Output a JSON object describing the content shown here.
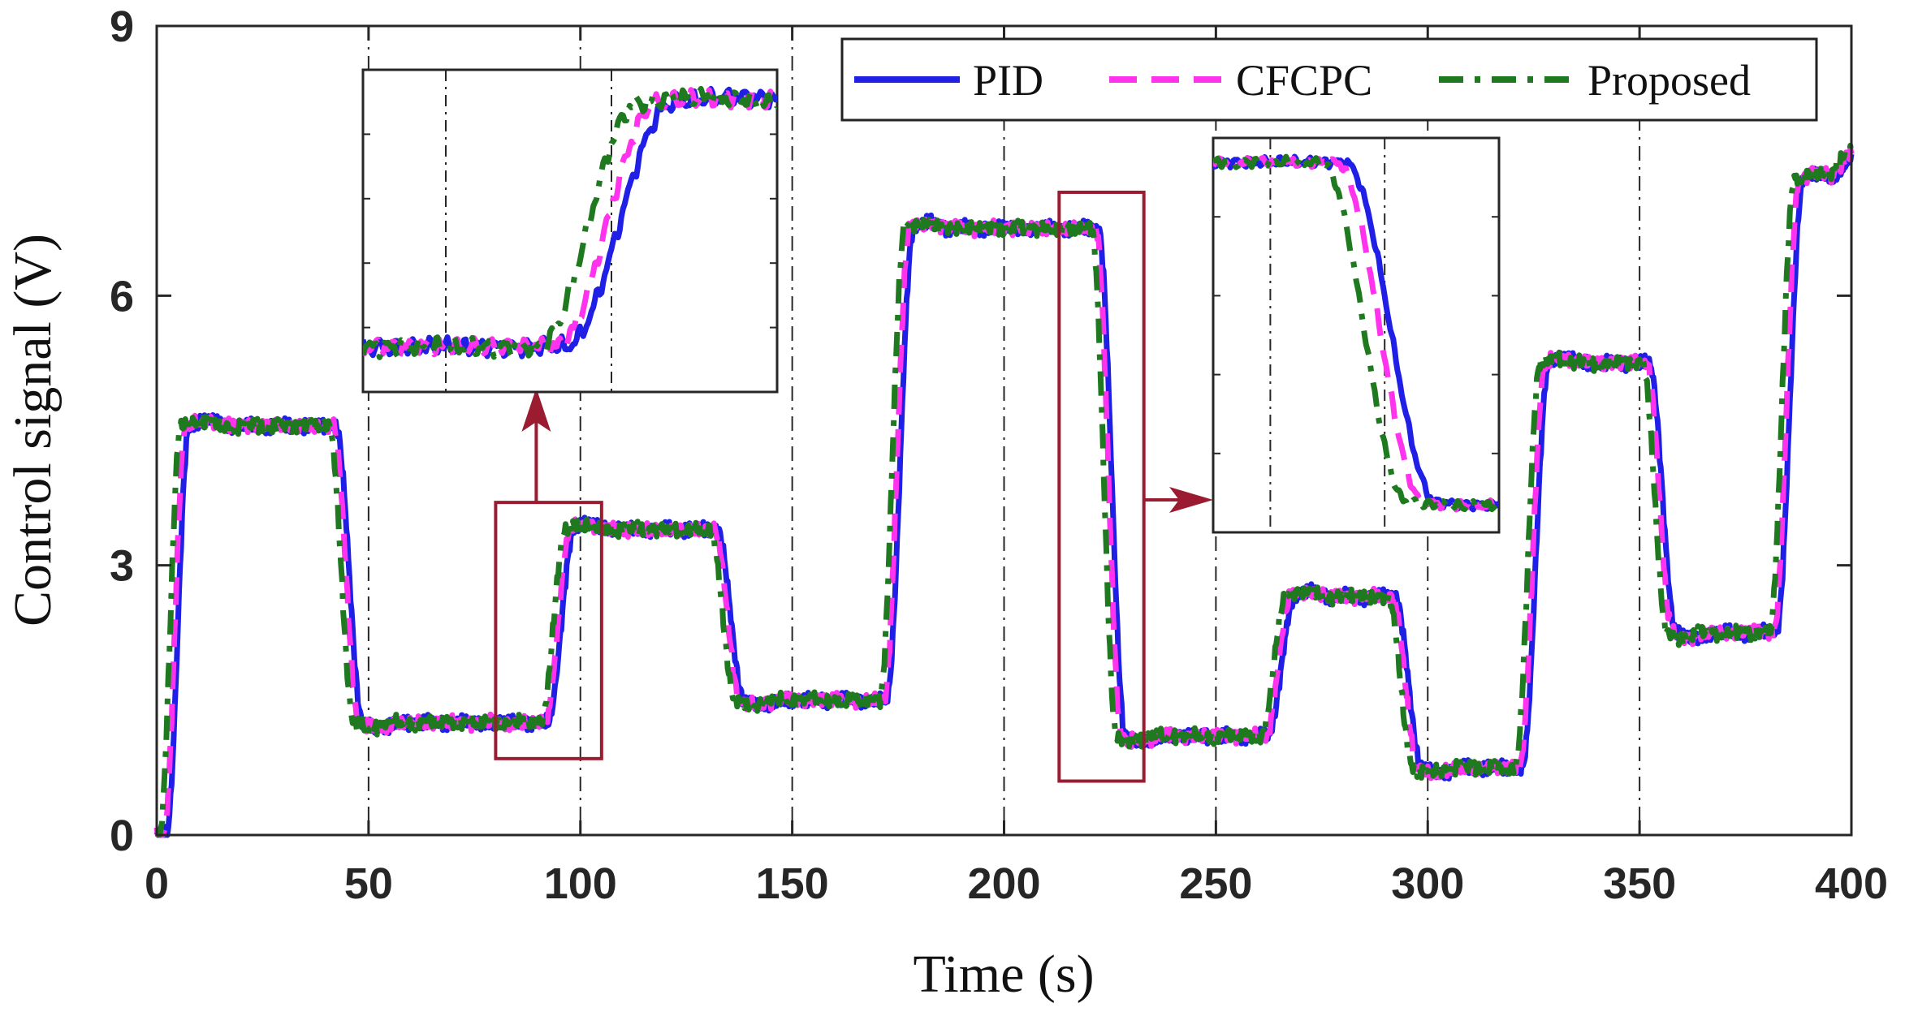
{
  "chart_data": {
    "type": "line",
    "xlabel": "Time (s)",
    "ylabel": "Control signal (V)",
    "xlim": [
      0,
      400
    ],
    "ylim": [
      0,
      9
    ],
    "xticks": [
      0,
      50,
      100,
      150,
      200,
      250,
      300,
      350,
      400
    ],
    "yticks": [
      0,
      3,
      6,
      9
    ],
    "grid": "vertical dash-dot lines at x ticks",
    "legend": {
      "placement": "top-right",
      "entries": [
        "PID",
        "CFCPC",
        "Proposed"
      ]
    },
    "reference_steps": [
      {
        "t": 0,
        "u": 4.55
      },
      {
        "t": 40,
        "u": 1.25
      },
      {
        "t": 90,
        "u": 3.4
      },
      {
        "t": 130,
        "u": 1.5
      },
      {
        "t": 170,
        "u": 6.75
      },
      {
        "t": 220,
        "u": 1.1
      },
      {
        "t": 260,
        "u": 2.65
      },
      {
        "t": 290,
        "u": 0.75
      },
      {
        "t": 320,
        "u": 5.25
      },
      {
        "t": 350,
        "u": 2.25
      },
      {
        "t": 380,
        "u": 7.3
      },
      {
        "t": 393,
        "u": 7.6
      }
    ],
    "series": [
      {
        "name": "PID",
        "color": "#1f1fe6",
        "style": "solid",
        "delay_s": 2.2,
        "ramp_s": 6.5
      },
      {
        "name": "CFCPC",
        "color": "#ff33ee",
        "style": "dashed",
        "delay_s": 1.6,
        "ramp_s": 6.2
      },
      {
        "name": "Proposed",
        "color": "#1f7a1f",
        "style": "dashdot",
        "delay_s": 0.6,
        "ramp_s": 6.0
      }
    ],
    "zoom_boxes": [
      {
        "name": "zoom-1",
        "x_range": [
          80,
          105
        ],
        "y_range": [
          0.85,
          3.7
        ],
        "inset": "upper-left"
      },
      {
        "name": "zoom-2",
        "x_range": [
          213,
          233
        ],
        "y_range": [
          0.6,
          7.15
        ],
        "inset": "upper-middle"
      }
    ],
    "annotation_color": "#9b1b30"
  }
}
